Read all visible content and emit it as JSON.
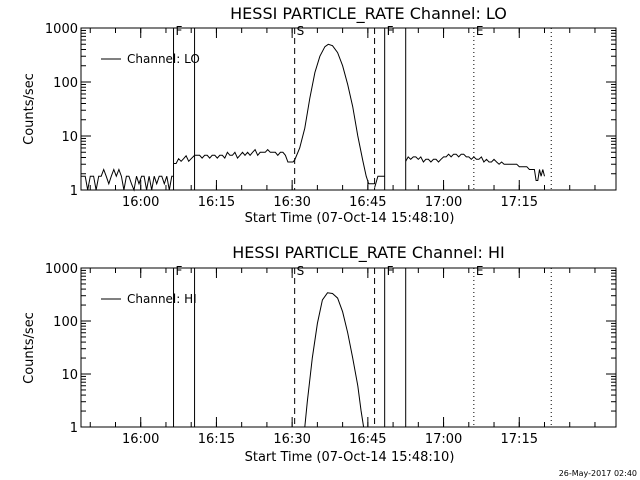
{
  "footer": {
    "timestamp": "26-May-2017 02:40"
  },
  "chart_data": [
    {
      "type": "line",
      "title": "HESSI PARTICLE_RATE Channel: LO",
      "xlabel": "Start Time (07-Oct-14 15:48:10)",
      "ylabel": "Counts/sec",
      "y_scale": "log",
      "ylim": [
        1,
        1000
      ],
      "y_ticks": [
        {
          "value": 1,
          "label": "1"
        },
        {
          "value": 10,
          "label": "10"
        },
        {
          "value": 100,
          "label": "100"
        },
        {
          "value": 1000,
          "label": "1000"
        }
      ],
      "xlim": [
        "15:48:10",
        "17:34:10"
      ],
      "x_ticks": [
        {
          "time": "16:00",
          "label": "16:00"
        },
        {
          "time": "16:15",
          "label": "16:15"
        },
        {
          "time": "16:30",
          "label": "16:30"
        },
        {
          "time": "16:45",
          "label": "16:45"
        },
        {
          "time": "17:00",
          "label": "17:00"
        },
        {
          "time": "17:15",
          "label": "17:15"
        }
      ],
      "legend": {
        "placement": "top-left",
        "entries": [
          {
            "label": "Channel: LO"
          }
        ]
      },
      "markers": [
        {
          "time": "16:06:30",
          "style": "solid",
          "label": "F"
        },
        {
          "time": "16:10:40",
          "style": "solid",
          "label": ""
        },
        {
          "time": "16:30:30",
          "style": "dashed",
          "label": "S"
        },
        {
          "time": "16:46:20",
          "style": "dashed",
          "label": ""
        },
        {
          "time": "16:48:20",
          "style": "solid",
          "label": "F"
        },
        {
          "time": "16:52:30",
          "style": "solid",
          "label": ""
        },
        {
          "time": "17:06:00",
          "style": "dotted",
          "label": "E"
        },
        {
          "time": "17:21:20",
          "style": "dotted",
          "label": ""
        }
      ],
      "series": [
        {
          "style": "solid",
          "segments": [
            [
              [
                "15:48:10",
                1.8
              ],
              [
                "15:49:00",
                1.8
              ],
              [
                "15:49:30",
                1
              ],
              [
                "15:50:00",
                1.8
              ],
              [
                "15:50:40",
                1.8
              ],
              [
                "15:51:10",
                1
              ],
              [
                "15:51:40",
                1.8
              ],
              [
                "15:52:10",
                1.8
              ],
              [
                "15:52:40",
                2.4
              ],
              [
                "15:53:10",
                1.8
              ],
              [
                "15:53:40",
                1.3
              ],
              [
                "15:54:10",
                1.8
              ],
              [
                "15:54:40",
                2.4
              ],
              [
                "15:55:10",
                1.8
              ],
              [
                "15:55:40",
                2.4
              ],
              [
                "15:56:10",
                1.8
              ],
              [
                "15:56:40",
                1
              ],
              [
                "15:57:10",
                1.8
              ],
              [
                "15:57:40",
                1.8
              ],
              [
                "15:58:10",
                1.3
              ],
              [
                "15:58:40",
                1
              ],
              [
                "15:59:10",
                1.8
              ],
              [
                "15:59:40",
                1.3
              ],
              [
                "16:00:10",
                1.8
              ],
              [
                "16:00:40",
                1.8
              ],
              [
                "16:01:10",
                1
              ],
              [
                "16:01:40",
                1.8
              ],
              [
                "16:02:10",
                1
              ],
              [
                "16:02:40",
                1.8
              ],
              [
                "16:03:10",
                1.3
              ],
              [
                "16:03:40",
                1.8
              ],
              [
                "16:04:10",
                1.8
              ],
              [
                "16:04:40",
                1.3
              ],
              [
                "16:05:10",
                1.8
              ],
              [
                "16:05:40",
                1
              ],
              [
                "16:06:10",
                1.8
              ],
              [
                "16:06:30",
                1.8
              ]
            ],
            [
              [
                "16:06:30",
                3.1
              ],
              [
                "16:07:00",
                3.1
              ],
              [
                "16:07:30",
                3.8
              ],
              [
                "16:08:00",
                3.4
              ],
              [
                "16:08:30",
                3.8
              ],
              [
                "16:09:00",
                4.3
              ],
              [
                "16:09:30",
                3.4
              ],
              [
                "16:10:00",
                3.8
              ],
              [
                "16:10:40",
                4.4
              ],
              [
                "16:11:10",
                4.4
              ],
              [
                "16:11:40",
                4.4
              ],
              [
                "16:12:10",
                3.9
              ],
              [
                "16:12:40",
                4.4
              ],
              [
                "16:13:10",
                4.4
              ],
              [
                "16:13:40",
                3.9
              ],
              [
                "16:14:10",
                4.4
              ],
              [
                "16:14:40",
                4.4
              ],
              [
                "16:15:10",
                3.9
              ],
              [
                "16:15:40",
                4.4
              ],
              [
                "16:16:10",
                4.4
              ],
              [
                "16:16:40",
                3.9
              ],
              [
                "16:17:10",
                5.0
              ],
              [
                "16:17:40",
                4.4
              ],
              [
                "16:18:10",
                4.4
              ],
              [
                "16:18:40",
                5.0
              ],
              [
                "16:19:10",
                3.9
              ],
              [
                "16:19:40",
                4.4
              ],
              [
                "16:20:10",
                5.0
              ],
              [
                "16:20:40",
                4.4
              ],
              [
                "16:21:10",
                5.0
              ],
              [
                "16:21:40",
                4.4
              ],
              [
                "16:22:10",
                5.0
              ],
              [
                "16:22:40",
                5.6
              ],
              [
                "16:23:10",
                4.4
              ],
              [
                "16:23:40",
                5.0
              ],
              [
                "16:24:10",
                5.0
              ],
              [
                "16:24:40",
                5.0
              ],
              [
                "16:25:10",
                5.6
              ],
              [
                "16:25:40",
                5.0
              ],
              [
                "16:26:10",
                5.0
              ],
              [
                "16:26:40",
                5.0
              ],
              [
                "16:27:10",
                4.4
              ],
              [
                "16:27:40",
                5.0
              ],
              [
                "16:28:10",
                5.0
              ],
              [
                "16:28:40",
                4.4
              ],
              [
                "16:29:10",
                3.3
              ],
              [
                "16:29:40",
                3.3
              ],
              [
                "16:30:10",
                3.3
              ],
              [
                "16:30:30",
                3.6
              ]
            ],
            [
              [
                "16:30:30",
                3.6
              ],
              [
                "16:31:30",
                6
              ],
              [
                "16:32:30",
                14
              ],
              [
                "16:33:30",
                50
              ],
              [
                "16:34:30",
                150
              ],
              [
                "16:35:30",
                300
              ],
              [
                "16:36:30",
                450
              ],
              [
                "16:37:10",
                500
              ],
              [
                "16:38:00",
                470
              ],
              [
                "16:39:00",
                350
              ],
              [
                "16:40:00",
                200
              ],
              [
                "16:41:00",
                90
              ],
              [
                "16:42:00",
                35
              ],
              [
                "16:43:00",
                10
              ],
              [
                "16:44:00",
                3.5
              ],
              [
                "16:44:40",
                1.8
              ],
              [
                "16:45:10",
                1.3
              ],
              [
                "16:45:40",
                1.3
              ],
              [
                "16:46:20",
                1.3
              ]
            ],
            [
              [
                "16:46:20",
                1.1
              ],
              [
                "16:47:00",
                1.8
              ],
              [
                "16:47:40",
                1.8
              ],
              [
                "16:48:20",
                1.8
              ]
            ],
            [
              [
                "16:52:30",
                3.4
              ],
              [
                "16:53:00",
                4.1
              ],
              [
                "16:53:30",
                3.7
              ],
              [
                "16:54:00",
                4.1
              ],
              [
                "16:54:30",
                4.1
              ],
              [
                "16:55:00",
                3.7
              ],
              [
                "16:55:30",
                4.1
              ],
              [
                "16:56:00",
                3.3
              ],
              [
                "16:56:30",
                3.7
              ],
              [
                "16:57:00",
                3.7
              ],
              [
                "16:57:30",
                3.3
              ],
              [
                "16:58:00",
                3.7
              ],
              [
                "16:58:30",
                3.7
              ],
              [
                "16:59:00",
                3.3
              ],
              [
                "16:59:30",
                3.7
              ],
              [
                "17:00:00",
                4.1
              ],
              [
                "17:00:30",
                4.1
              ],
              [
                "17:01:00",
                4.6
              ],
              [
                "17:01:30",
                4.1
              ],
              [
                "17:02:00",
                4.6
              ],
              [
                "17:02:30",
                4.6
              ],
              [
                "17:03:00",
                4.1
              ],
              [
                "17:03:30",
                4.6
              ],
              [
                "17:04:00",
                4.6
              ],
              [
                "17:04:30",
                4.1
              ],
              [
                "17:05:00",
                4.1
              ],
              [
                "17:05:30",
                3.7
              ],
              [
                "17:06:00",
                4.1
              ],
              [
                "17:06:30",
                3.7
              ],
              [
                "17:07:00",
                3.7
              ],
              [
                "17:07:30",
                4.1
              ],
              [
                "17:08:00",
                3.3
              ],
              [
                "17:08:30",
                3.7
              ],
              [
                "17:09:00",
                3.3
              ],
              [
                "17:09:30",
                3.3
              ],
              [
                "17:10:00",
                3.7
              ],
              [
                "17:10:30",
                3.3
              ],
              [
                "17:11:00",
                3.0
              ],
              [
                "17:11:30",
                3.3
              ],
              [
                "17:12:00",
                3.0
              ],
              [
                "17:12:30",
                3.0
              ],
              [
                "17:13:00",
                3.0
              ],
              [
                "17:13:30",
                3.0
              ],
              [
                "17:14:00",
                3.0
              ],
              [
                "17:14:30",
                3.0
              ],
              [
                "17:15:00",
                2.7
              ],
              [
                "17:15:30",
                2.7
              ],
              [
                "17:16:00",
                2.7
              ],
              [
                "17:16:30",
                2.7
              ],
              [
                "17:17:00",
                2.4
              ],
              [
                "17:17:30",
                2.4
              ],
              [
                "17:18:00",
                2.4
              ],
              [
                "17:18:20",
                1.5
              ],
              [
                "17:18:40",
                1.5
              ],
              [
                "17:19:00",
                2.4
              ],
              [
                "17:19:20",
                1.8
              ],
              [
                "17:19:40",
                2.4
              ],
              [
                "17:20:00",
                1.8
              ]
            ]
          ]
        }
      ]
    },
    {
      "type": "line",
      "title": "HESSI PARTICLE_RATE Channel: HI",
      "xlabel": "Start Time (07-Oct-14 15:48:10)",
      "ylabel": "Counts/sec",
      "y_scale": "log",
      "ylim": [
        1,
        1000
      ],
      "y_ticks": [
        {
          "value": 1,
          "label": "1"
        },
        {
          "value": 10,
          "label": "10"
        },
        {
          "value": 100,
          "label": "100"
        },
        {
          "value": 1000,
          "label": "1000"
        }
      ],
      "xlim": [
        "15:48:10",
        "17:34:10"
      ],
      "x_ticks": [
        {
          "time": "16:00",
          "label": "16:00"
        },
        {
          "time": "16:15",
          "label": "16:15"
        },
        {
          "time": "16:30",
          "label": "16:30"
        },
        {
          "time": "16:45",
          "label": "16:45"
        },
        {
          "time": "17:00",
          "label": "17:00"
        },
        {
          "time": "17:15",
          "label": "17:15"
        }
      ],
      "legend": {
        "placement": "top-left",
        "entries": [
          {
            "label": "Channel: HI"
          }
        ]
      },
      "markers": [
        {
          "time": "16:06:30",
          "style": "solid",
          "label": "F"
        },
        {
          "time": "16:10:40",
          "style": "solid",
          "label": ""
        },
        {
          "time": "16:30:30",
          "style": "dashed",
          "label": "S"
        },
        {
          "time": "16:46:20",
          "style": "dashed",
          "label": ""
        },
        {
          "time": "16:48:20",
          "style": "solid",
          "label": "F"
        },
        {
          "time": "16:52:30",
          "style": "solid",
          "label": ""
        },
        {
          "time": "17:06:00",
          "style": "dotted",
          "label": "E"
        },
        {
          "time": "17:21:20",
          "style": "dotted",
          "label": ""
        }
      ],
      "series": [
        {
          "style": "solid",
          "segments": [
            [
              [
                "16:32:30",
                1
              ],
              [
                "16:33:00",
                3
              ],
              [
                "16:34:00",
                20
              ],
              [
                "16:35:00",
                90
              ],
              [
                "16:36:00",
                250
              ],
              [
                "16:37:00",
                340
              ],
              [
                "16:38:00",
                330
              ],
              [
                "16:39:00",
                270
              ],
              [
                "16:40:00",
                150
              ],
              [
                "16:41:00",
                60
              ],
              [
                "16:42:00",
                20
              ],
              [
                "16:43:00",
                6
              ],
              [
                "16:43:40",
                2
              ],
              [
                "16:44:10",
                1
              ]
            ]
          ]
        }
      ]
    }
  ]
}
